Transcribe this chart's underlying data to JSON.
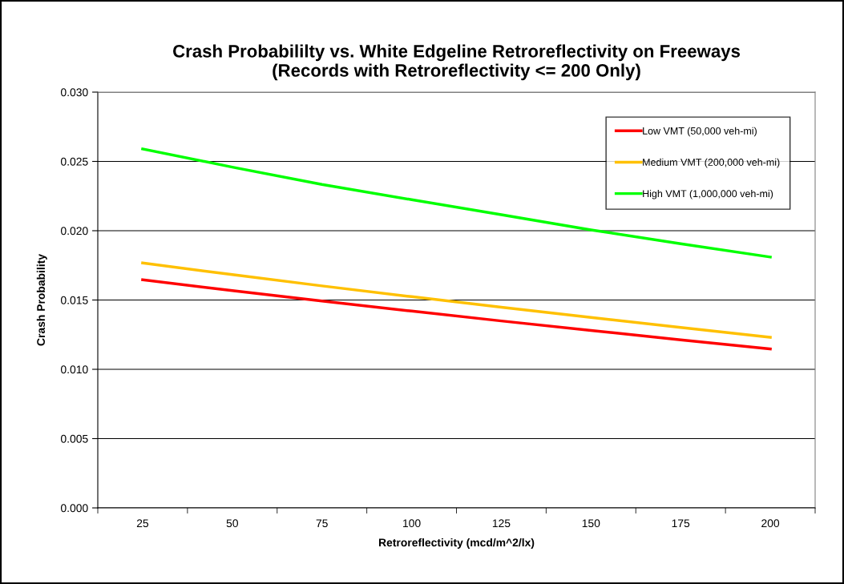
{
  "chart_data": {
    "type": "line",
    "title": "Crash Probabililty vs. White Edgeline Retroreflectivity on Freeways\n(Records with Retroreflectivity <= 200 Only)",
    "xlabel": "Retroreflectivity (mcd/m^2/lx)",
    "ylabel": "Crash Probability",
    "categories": [
      "25",
      "50",
      "75",
      "100",
      "125",
      "150",
      "175",
      "200"
    ],
    "series": [
      {
        "name": "Low VMT (50,000 veh-mi)",
        "color": "#ff0000",
        "values": [
          0.01646,
          0.01568,
          0.01493,
          0.0142,
          0.01349,
          0.0128,
          0.01213,
          0.01147
        ]
      },
      {
        "name": "Medium VMT (200,000 veh-mi)",
        "color": "#ffc000",
        "values": [
          0.01767,
          0.01683,
          0.01602,
          0.01524,
          0.01448,
          0.01374,
          0.01302,
          0.01231
        ]
      },
      {
        "name": "High VMT (1,000,000 veh-mi)",
        "color": "#00ff00",
        "values": [
          0.0259,
          0.02459,
          0.02334,
          0.02224,
          0.02116,
          0.02006,
          0.01906,
          0.0181
        ]
      }
    ],
    "ylim": [
      0,
      0.03
    ],
    "yticks": [
      {
        "value": 0,
        "label": "0.000"
      },
      {
        "value": 0.005,
        "label": "0.005"
      },
      {
        "value": 0.01,
        "label": "0.010"
      },
      {
        "value": 0.015,
        "label": "0.015"
      },
      {
        "value": 0.02,
        "label": "0.020"
      },
      {
        "value": 0.025,
        "label": "0.025"
      },
      {
        "value": 0.03,
        "label": "0.030"
      }
    ],
    "grid": "y",
    "legend": "top right",
    "marker": "none",
    "line_style": "solid"
  }
}
